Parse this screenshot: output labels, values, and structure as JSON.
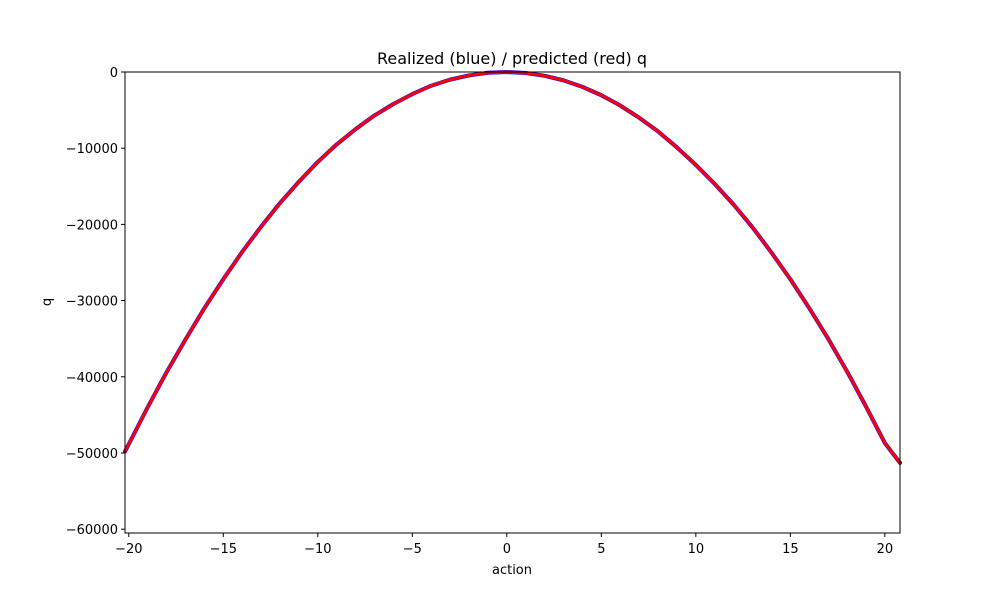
{
  "chart_data": {
    "type": "scatter",
    "title": "Realized (blue) / predicted (red) q",
    "xlabel": "action",
    "ylabel": "q",
    "xlim": [
      -20.2,
      20.8
    ],
    "ylim": [
      -60500,
      0
    ],
    "x_ticks": [
      -20,
      -15,
      -10,
      -5,
      0,
      5,
      10,
      15,
      20
    ],
    "x_tick_labels": [
      "−20",
      "−15",
      "−10",
      "−5",
      "0",
      "5",
      "10",
      "15",
      "20"
    ],
    "y_ticks": [
      0,
      -10000,
      -20000,
      -30000,
      -40000,
      -50000,
      -60000
    ],
    "y_tick_labels": [
      "0",
      "−10000",
      "−20000",
      "−30000",
      "−40000",
      "−50000",
      "−60000"
    ],
    "grid": false,
    "series": [
      {
        "color": "#0000ff",
        "x": [
          -20.2,
          -19,
          -18,
          -17,
          -16,
          -15,
          -14,
          -13,
          -12,
          -11,
          -10,
          -9,
          -8,
          -7,
          -6,
          -5,
          -4,
          -3,
          -2,
          -1,
          0,
          1,
          2,
          3,
          4,
          5,
          6,
          7,
          8,
          9,
          10,
          11,
          12,
          13,
          14,
          15,
          16,
          17,
          18,
          19,
          20,
          20.8
        ],
        "y": [
          -49800,
          -44000,
          -39400,
          -35100,
          -31000,
          -27200,
          -23600,
          -20300,
          -17200,
          -14400,
          -11800,
          -9500,
          -7500,
          -5700,
          -4200,
          -2900,
          -1800,
          -1000,
          -450,
          -100,
          0,
          -130,
          -500,
          -1100,
          -1950,
          -3050,
          -4400,
          -6000,
          -7800,
          -9900,
          -12200,
          -14700,
          -17400,
          -20400,
          -23700,
          -27200,
          -31000,
          -35000,
          -39300,
          -43900,
          -48700,
          -51300
        ]
      },
      {
        "color": "#ff0000",
        "x": [
          -20.2,
          -19,
          -18,
          -17,
          -16,
          -15,
          -14,
          -13,
          -12,
          -11,
          -10,
          -9,
          -8,
          -7,
          -6,
          -5,
          -4,
          -3,
          -2,
          -1,
          0,
          1,
          2,
          3,
          4,
          5,
          6,
          7,
          8,
          9,
          10,
          11,
          12,
          13,
          14,
          15,
          16,
          17,
          18,
          19,
          20,
          20.8
        ],
        "y": [
          -49800,
          -44000,
          -39400,
          -35100,
          -31000,
          -27200,
          -23600,
          -20300,
          -17200,
          -14400,
          -11800,
          -9500,
          -7500,
          -5700,
          -4200,
          -2900,
          -1800,
          -1000,
          -450,
          -100,
          0,
          -130,
          -500,
          -1100,
          -1950,
          -3050,
          -4400,
          -6000,
          -7800,
          -9900,
          -12200,
          -14700,
          -17400,
          -20400,
          -23700,
          -27200,
          -31000,
          -35000,
          -39300,
          -43900,
          -48700,
          -51300
        ]
      }
    ]
  }
}
